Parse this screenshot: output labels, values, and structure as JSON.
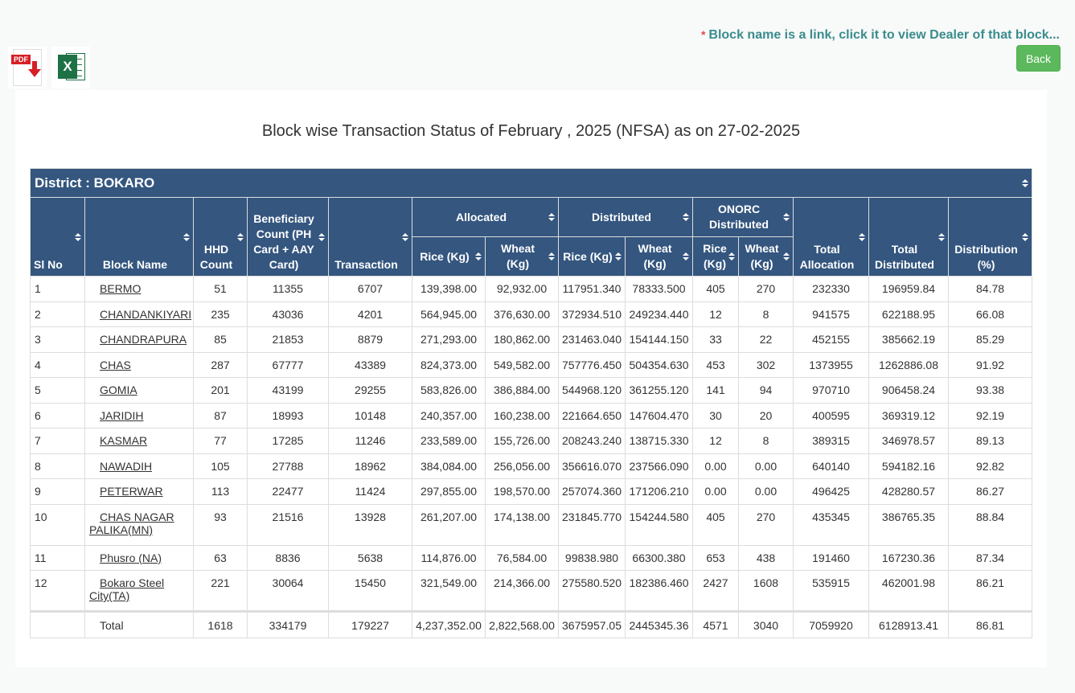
{
  "note": {
    "star": "*",
    "text": "Block name is a link, click it to view Dealer of that block..."
  },
  "back_label": "Back",
  "icons": {
    "pdf": "pdf-download-icon",
    "excel": "excel-export-icon",
    "pdf_tag": "PDF",
    "excel_letter": "X"
  },
  "title": "Block wise Transaction Status of February , 2025 (NFSA) as on 27-02-2025",
  "district_label": "District : BOKARO",
  "headers": {
    "sl": "Sl No",
    "block": "Block Name",
    "hhd": "HHD Count",
    "beneficiary": "Beneficiary Count (PH Card + AAY Card)",
    "transaction": "Transaction",
    "allocated": "Allocated",
    "distributed": "Distributed",
    "onorc": "ONORC Distributed",
    "total_alloc": "Total Allocation",
    "total_dist": "Total Distributed",
    "dist_pct": "Distribution (%)",
    "rice": "Rice (Kg)",
    "wheat": "Wheat (Kg)"
  },
  "rows": [
    {
      "sl": "1",
      "block": "BERMO",
      "hhd": "51",
      "ben": "11355",
      "tx": "6707",
      "ar": "139,398.00",
      "aw": "92,932.00",
      "dr": "117951.340",
      "dw": "78333.500",
      "or": "405",
      "ow": "270",
      "ta": "232330",
      "td": "196959.84",
      "pct": "84.78"
    },
    {
      "sl": "2",
      "block": "CHANDANKIYARI",
      "hhd": "235",
      "ben": "43036",
      "tx": "4201",
      "ar": "564,945.00",
      "aw": "376,630.00",
      "dr": "372934.510",
      "dw": "249234.440",
      "or": "12",
      "ow": "8",
      "ta": "941575",
      "td": "622188.95",
      "pct": "66.08"
    },
    {
      "sl": "3",
      "block": "CHANDRAPURA",
      "hhd": "85",
      "ben": "21853",
      "tx": "8879",
      "ar": "271,293.00",
      "aw": "180,862.00",
      "dr": "231463.040",
      "dw": "154144.150",
      "or": "33",
      "ow": "22",
      "ta": "452155",
      "td": "385662.19",
      "pct": "85.29"
    },
    {
      "sl": "4",
      "block": "CHAS",
      "hhd": "287",
      "ben": "67777",
      "tx": "43389",
      "ar": "824,373.00",
      "aw": "549,582.00",
      "dr": "757776.450",
      "dw": "504354.630",
      "or": "453",
      "ow": "302",
      "ta": "1373955",
      "td": "1262886.08",
      "pct": "91.92"
    },
    {
      "sl": "5",
      "block": "GOMIA",
      "hhd": "201",
      "ben": "43199",
      "tx": "29255",
      "ar": "583,826.00",
      "aw": "386,884.00",
      "dr": "544968.120",
      "dw": "361255.120",
      "or": "141",
      "ow": "94",
      "ta": "970710",
      "td": "906458.24",
      "pct": "93.38"
    },
    {
      "sl": "6",
      "block": "JARIDIH",
      "hhd": "87",
      "ben": "18993",
      "tx": "10148",
      "ar": "240,357.00",
      "aw": "160,238.00",
      "dr": "221664.650",
      "dw": "147604.470",
      "or": "30",
      "ow": "20",
      "ta": "400595",
      "td": "369319.12",
      "pct": "92.19"
    },
    {
      "sl": "7",
      "block": "KASMAR",
      "hhd": "77",
      "ben": "17285",
      "tx": "11246",
      "ar": "233,589.00",
      "aw": "155,726.00",
      "dr": "208243.240",
      "dw": "138715.330",
      "or": "12",
      "ow": "8",
      "ta": "389315",
      "td": "346978.57",
      "pct": "89.13"
    },
    {
      "sl": "8",
      "block": "NAWADIH",
      "hhd": "105",
      "ben": "27788",
      "tx": "18962",
      "ar": "384,084.00",
      "aw": "256,056.00",
      "dr": "356616.070",
      "dw": "237566.090",
      "or": "0.00",
      "ow": "0.00",
      "ta": "640140",
      "td": "594182.16",
      "pct": "92.82"
    },
    {
      "sl": "9",
      "block": "PETERWAR",
      "hhd": "113",
      "ben": "22477",
      "tx": "11424",
      "ar": "297,855.00",
      "aw": "198,570.00",
      "dr": "257074.360",
      "dw": "171206.210",
      "or": "0.00",
      "ow": "0.00",
      "ta": "496425",
      "td": "428280.57",
      "pct": "86.27"
    },
    {
      "sl": "10",
      "block": "CHAS NAGAR PALIKA(MN)",
      "hhd": "93",
      "ben": "21516",
      "tx": "13928",
      "ar": "261,207.00",
      "aw": "174,138.00",
      "dr": "231845.770",
      "dw": "154244.580",
      "or": "405",
      "ow": "270",
      "ta": "435345",
      "td": "386765.35",
      "pct": "88.84"
    },
    {
      "sl": "11",
      "block": "Phusro (NA)",
      "hhd": "63",
      "ben": "8836",
      "tx": "5638",
      "ar": "114,876.00",
      "aw": "76,584.00",
      "dr": "99838.980",
      "dw": "66300.380",
      "or": "653",
      "ow": "438",
      "ta": "191460",
      "td": "167230.36",
      "pct": "87.34"
    },
    {
      "sl": "12",
      "block": "Bokaro Steel City(TA)",
      "hhd": "221",
      "ben": "30064",
      "tx": "15450",
      "ar": "321,549.00",
      "aw": "214,366.00",
      "dr": "275580.520",
      "dw": "182386.460",
      "or": "2427",
      "ow": "1608",
      "ta": "535915",
      "td": "462001.98",
      "pct": "86.21"
    }
  ],
  "total": {
    "label": "Total",
    "hhd": "1618",
    "ben": "334179",
    "tx": "179227",
    "ar": "4,237,352.00",
    "aw": "2,822,568.00",
    "dr": "3675957.05",
    "dw": "2445345.36",
    "or": "4571",
    "ow": "3040",
    "ta": "7059920",
    "td": "6128913.41",
    "pct": "86.81"
  }
}
